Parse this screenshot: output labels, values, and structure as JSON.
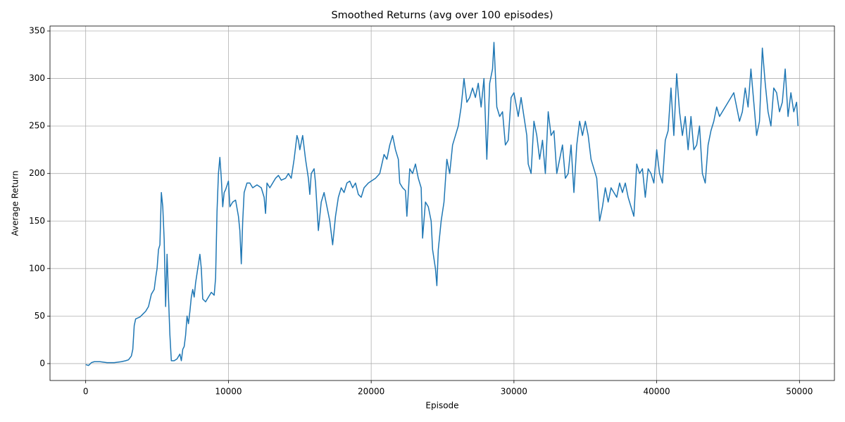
{
  "chart_data": {
    "type": "line",
    "title": "Smoothed Returns (avg over 100 episodes)",
    "x_label": "Episode",
    "y_label": "Average Return",
    "color": "#1f77b4",
    "grid": true,
    "xlim": [
      -2500,
      52450
    ],
    "ylim": [
      -17.8,
      355.2
    ],
    "xticks": [
      0,
      10000,
      20000,
      30000,
      40000,
      50000
    ],
    "yticks": [
      0,
      50,
      100,
      150,
      200,
      250,
      300,
      350
    ],
    "x": [
      0,
      200,
      400,
      600,
      1000,
      1500,
      2000,
      2500,
      2800,
      3000,
      3200,
      3300,
      3400,
      3500,
      3800,
      4000,
      4200,
      4400,
      4600,
      4800,
      4900,
      5000,
      5100,
      5200,
      5300,
      5400,
      5500,
      5600,
      5700,
      5800,
      5900,
      6000,
      6200,
      6400,
      6600,
      6700,
      6800,
      6900,
      7000,
      7100,
      7200,
      7300,
      7400,
      7500,
      7600,
      7700,
      7800,
      7900,
      8000,
      8100,
      8200,
      8400,
      8600,
      8800,
      9000,
      9100,
      9200,
      9300,
      9400,
      9500,
      9600,
      9700,
      9800,
      10000,
      10100,
      10300,
      10500,
      10700,
      10800,
      10900,
      11000,
      11100,
      11300,
      11500,
      11700,
      12000,
      12300,
      12500,
      12600,
      12700,
      12900,
      13100,
      13300,
      13500,
      13700,
      14000,
      14200,
      14400,
      14600,
      14800,
      14900,
      15000,
      15200,
      15400,
      15600,
      15700,
      15800,
      16000,
      16100,
      16300,
      16500,
      16700,
      16900,
      17100,
      17300,
      17500,
      17700,
      17900,
      18100,
      18300,
      18500,
      18700,
      18900,
      19100,
      19300,
      19500,
      19800,
      20000,
      20300,
      20600,
      20900,
      21100,
      21300,
      21500,
      21700,
      21900,
      22000,
      22200,
      22400,
      22500,
      22700,
      22900,
      23100,
      23300,
      23500,
      23600,
      23800,
      24000,
      24200,
      24300,
      24500,
      24600,
      24700,
      24900,
      25100,
      25300,
      25500,
      25700,
      25900,
      26100,
      26300,
      26500,
      26700,
      26900,
      27100,
      27300,
      27500,
      27700,
      27900,
      28100,
      28300,
      28500,
      28600,
      28800,
      29000,
      29200,
      29400,
      29600,
      29800,
      30000,
      30300,
      30500,
      30700,
      30900,
      31000,
      31200,
      31400,
      31600,
      31800,
      32000,
      32200,
      32400,
      32600,
      32800,
      33000,
      33200,
      33400,
      33600,
      33800,
      34000,
      34200,
      34400,
      34600,
      34800,
      35000,
      35200,
      35400,
      35600,
      35800,
      36000,
      36200,
      36400,
      36600,
      36800,
      37000,
      37200,
      37400,
      37600,
      37800,
      38000,
      38200,
      38400,
      38600,
      38800,
      39000,
      39200,
      39400,
      39600,
      39800,
      40000,
      40200,
      40400,
      40600,
      40800,
      41000,
      41200,
      41400,
      41600,
      41800,
      42000,
      42200,
      42400,
      42600,
      42800,
      43000,
      43200,
      43400,
      43600,
      43800,
      44000,
      44200,
      44400,
      44600,
      44800,
      45000,
      45200,
      45400,
      45600,
      45800,
      46000,
      46200,
      46400,
      46600,
      46800,
      47000,
      47200,
      47400,
      47600,
      47800,
      48000,
      48200,
      48400,
      48600,
      48800,
      49000,
      49200,
      49400,
      49600,
      49800,
      49900
    ],
    "values": [
      -1,
      -2,
      1,
      2,
      2,
      1,
      1,
      2,
      3,
      4,
      8,
      15,
      40,
      47,
      49,
      52,
      55,
      60,
      73,
      78,
      90,
      100,
      120,
      125,
      180,
      165,
      130,
      60,
      115,
      70,
      30,
      3,
      3,
      5,
      10,
      3,
      15,
      18,
      30,
      50,
      42,
      55,
      70,
      78,
      70,
      85,
      95,
      105,
      115,
      100,
      68,
      65,
      70,
      75,
      72,
      90,
      160,
      200,
      217,
      195,
      165,
      180,
      183,
      192,
      165,
      170,
      172,
      155,
      140,
      105,
      150,
      180,
      190,
      190,
      185,
      188,
      185,
      175,
      158,
      190,
      185,
      190,
      195,
      198,
      193,
      195,
      200,
      195,
      215,
      240,
      235,
      225,
      240,
      215,
      195,
      178,
      200,
      205,
      190,
      140,
      170,
      180,
      165,
      150,
      125,
      155,
      175,
      185,
      180,
      190,
      192,
      185,
      190,
      178,
      175,
      185,
      190,
      192,
      195,
      200,
      220,
      215,
      230,
      240,
      225,
      215,
      190,
      185,
      182,
      155,
      205,
      200,
      210,
      195,
      185,
      132,
      170,
      165,
      150,
      120,
      100,
      82,
      120,
      150,
      170,
      215,
      200,
      230,
      240,
      250,
      270,
      300,
      275,
      280,
      290,
      280,
      295,
      270,
      300,
      215,
      295,
      310,
      338,
      270,
      260,
      265,
      230,
      235,
      280,
      285,
      260,
      280,
      260,
      240,
      210,
      200,
      255,
      240,
      215,
      235,
      200,
      265,
      240,
      245,
      200,
      215,
      230,
      195,
      200,
      230,
      180,
      230,
      255,
      240,
      255,
      240,
      215,
      205,
      195,
      150,
      165,
      185,
      170,
      185,
      180,
      175,
      190,
      180,
      190,
      175,
      165,
      155,
      210,
      200,
      205,
      175,
      205,
      200,
      190,
      225,
      200,
      190,
      235,
      245,
      290,
      240,
      305,
      265,
      240,
      260,
      225,
      260,
      225,
      230,
      250,
      200,
      190,
      230,
      245,
      255,
      270,
      260,
      265,
      270,
      275,
      280,
      285,
      270,
      255,
      265,
      290,
      270,
      310,
      275,
      240,
      255,
      332,
      295,
      265,
      250,
      290,
      285,
      265,
      275,
      310,
      260,
      285,
      265,
      275,
      250
    ]
  }
}
